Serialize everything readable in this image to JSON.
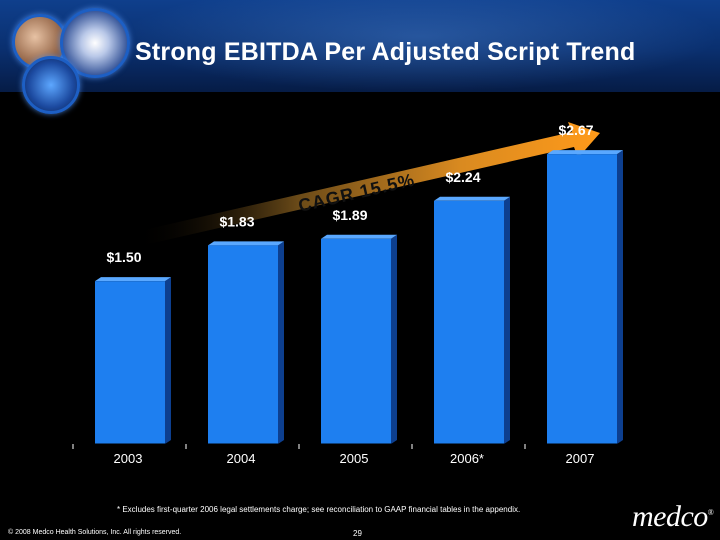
{
  "header": {
    "title": "Strong EBITDA Per Adjusted Script Trend"
  },
  "chart_data": {
    "type": "bar",
    "title": "Strong EBITDA Per Adjusted Script Trend",
    "categories": [
      "2003",
      "2004",
      "2005",
      "2006*",
      "2007"
    ],
    "values": [
      1.5,
      1.83,
      1.89,
      2.24,
      2.67
    ],
    "data_labels": [
      "$1.50",
      "$1.83",
      "$1.89",
      "$2.24",
      "$2.67"
    ],
    "ylim": [
      0,
      2.8
    ],
    "annotation": "CAGR 15.5%",
    "bar_color": "#1e7ff0"
  },
  "footer": {
    "footnote": "* Excludes first-quarter 2006 legal settlements charge; see reconciliation to GAAP financial tables in the appendix.",
    "copyright": "© 2008 Medco Health Solutions, Inc. All rights reserved.",
    "page_number": "29",
    "logo": "medco",
    "logo_mark": "®"
  }
}
